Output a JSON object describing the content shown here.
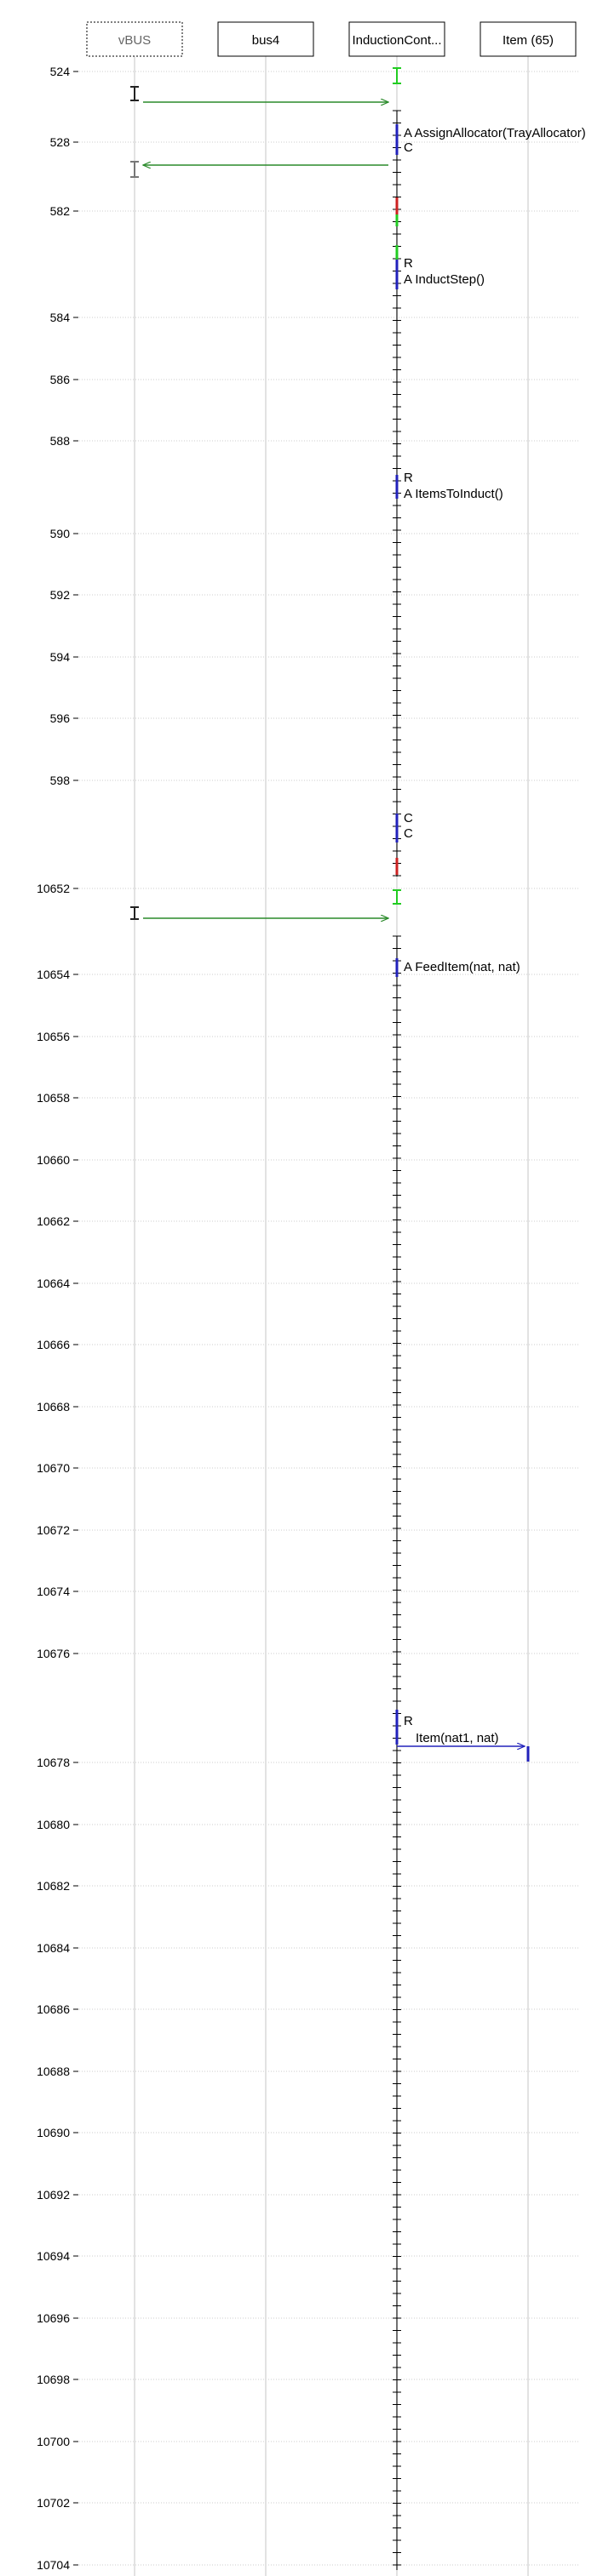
{
  "lifelines": [
    {
      "label": "vBUS",
      "style": "dotted"
    },
    {
      "label": "bus4",
      "style": "solid"
    },
    {
      "label": "InductionCont...",
      "style": "solid"
    },
    {
      "label": "Item (65)",
      "style": "solid"
    }
  ],
  "time_labels": [
    "524",
    "528",
    "582",
    "584",
    "586",
    "588",
    "590",
    "592",
    "594",
    "596",
    "598",
    "10652",
    "10654",
    "10656",
    "10658",
    "10660",
    "10662",
    "10664",
    "10666",
    "10668",
    "10670",
    "10672",
    "10674",
    "10676",
    "10678",
    "10680",
    "10682",
    "10684",
    "10686",
    "10688",
    "10690",
    "10692",
    "10694",
    "10696",
    "10698",
    "10700",
    "10702",
    "10704"
  ],
  "messages": [
    {
      "from": "vBUS",
      "to": "InductionCont...",
      "color": "#2a8a2a",
      "label": ""
    },
    {
      "from": "InductionCont...",
      "to": "vBUS",
      "color": "#2a8a2a",
      "label": ""
    },
    {
      "from": "vBUS",
      "to": "InductionCont...",
      "color": "#2a8a2a",
      "label": ""
    },
    {
      "from": "InductionCont...",
      "to": "Item (65)",
      "color": "#2222bb",
      "label": "Item(nat1, nat)"
    }
  ],
  "annotations": [
    "A AssignAllocator(TrayAllocator)",
    "C",
    "R",
    "A InductStep()",
    "R",
    "A ItemsToInduct()",
    "C",
    "C",
    "A FeedItem(nat, nat)",
    "R"
  ],
  "colors": {
    "message_green": "#2a8a2a",
    "call_blue": "#2222bb",
    "event_red": "#cc2222",
    "event_green": "#22cc22",
    "grid": "#cccccc"
  }
}
